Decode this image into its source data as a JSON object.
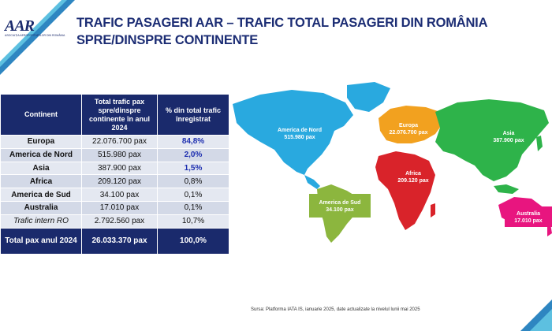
{
  "logo": {
    "text": "AAR",
    "subtitle": "ASOCIAȚIA AEROPORTURILOR DIN ROMÂNIA"
  },
  "title": "TRAFIC PASAGERI AAR – TRAFIC  TOTAL PASAGERI DIN ROMÂNIA SPRE/DINSPRE CONTINENTE",
  "table": {
    "headers": [
      "Continent",
      "Total trafic pax spre/dinspre continente în anul 2024",
      "% din total trafic înregistrat"
    ],
    "rows": [
      {
        "continent": "Europa",
        "pax": "22.076.700 pax",
        "pct": "84,8%"
      },
      {
        "continent": "America de Nord",
        "pax": "515.980 pax",
        "pct": "2,0%"
      },
      {
        "continent": "Asia",
        "pax": "387.900 pax",
        "pct": "1,5%"
      },
      {
        "continent": "Africa",
        "pax": "209.120 pax",
        "pct": "0,8%"
      },
      {
        "continent": "America de Sud",
        "pax": "34.100 pax",
        "pct": "0,1%"
      },
      {
        "continent": "Australia",
        "pax": "17.010 pax",
        "pct": "0,1%"
      },
      {
        "continent": "Trafic intern RO",
        "pax": "2.792.560 pax",
        "pct": "10,7%"
      }
    ],
    "total": {
      "label": "Total pax anul 2024",
      "pax": "26.033.370 pax",
      "pct": "100,0%"
    }
  },
  "map": {
    "north_america": {
      "name": "America de Nord",
      "pax": "515.980 pax",
      "color": "#29a9df"
    },
    "europe": {
      "name": "Europa",
      "pax": "22.076.700 pax",
      "color": "#f2a11f"
    },
    "asia": {
      "name": "Asia",
      "pax": "387.900 pax",
      "color": "#2eb34a"
    },
    "africa": {
      "name": "Africa",
      "pax": "209.120 pax",
      "color": "#d9232a"
    },
    "south_america": {
      "name": "America de Sud",
      "pax": "34.100 pax",
      "color": "#8cb63e"
    },
    "australia": {
      "name": "Australia",
      "pax": "17.010 pax",
      "color": "#e8157f"
    }
  },
  "source": "Sursa: Platforma IATA IS, ianuarie 2025, date actualizate la nivelul lunii mai 2025"
}
